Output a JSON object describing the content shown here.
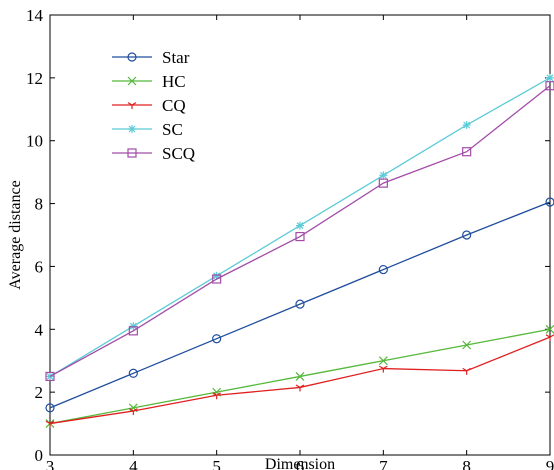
{
  "chart_data": {
    "type": "line",
    "title": "",
    "xlabel": "Dimension",
    "ylabel": "Average distance",
    "xlim": [
      3,
      9
    ],
    "ylim": [
      0,
      14
    ],
    "xticks": [
      3,
      4,
      5,
      6,
      7,
      8,
      9
    ],
    "yticks": [
      0,
      2,
      4,
      6,
      8,
      10,
      12,
      14
    ],
    "grid": false,
    "legend_position": "top-left",
    "x": [
      3,
      4,
      5,
      6,
      7,
      8,
      9
    ],
    "series": [
      {
        "name": "Star",
        "color": "#1f4e9c",
        "marker": "circle",
        "values": [
          1.5,
          2.6,
          3.7,
          4.8,
          5.9,
          7.0,
          8.05
        ]
      },
      {
        "name": "HC",
        "color": "#55b83a",
        "marker": "x",
        "values": [
          1.0,
          1.5,
          2.0,
          2.5,
          3.0,
          3.5,
          4.0
        ]
      },
      {
        "name": "CQ",
        "color": "#e02020",
        "marker": "tri",
        "values": [
          1.0,
          1.4,
          1.9,
          2.15,
          2.75,
          2.68,
          3.75
        ]
      },
      {
        "name": "SC",
        "color": "#5ccbd6",
        "marker": "star",
        "values": [
          2.5,
          4.1,
          5.7,
          7.3,
          8.9,
          10.5,
          12.0
        ]
      },
      {
        "name": "SCQ",
        "color": "#a24ca8",
        "marker": "square",
        "values": [
          2.5,
          3.95,
          5.6,
          6.95,
          8.65,
          9.65,
          11.75
        ]
      }
    ]
  }
}
